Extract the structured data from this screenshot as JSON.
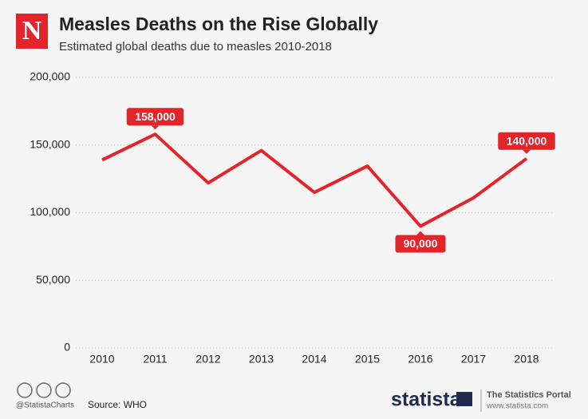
{
  "chart_data": {
    "type": "line",
    "title": "Measles Deaths on the Rise Globally",
    "subtitle": "Estimated global deaths due to measles 2010-2018",
    "logo": "N",
    "categories": [
      "2010",
      "2011",
      "2012",
      "2013",
      "2014",
      "2015",
      "2016",
      "2017",
      "2018"
    ],
    "values": [
      139000,
      158000,
      122000,
      146000,
      115000,
      134500,
      90000,
      111000,
      140000
    ],
    "value_labels": [
      null,
      "158,000",
      null,
      null,
      null,
      null,
      "90,000",
      null,
      "140,000"
    ],
    "color": "#e3242b",
    "ylim": [
      0,
      200000
    ],
    "yticks": [
      {
        "value": 0,
        "label": "0"
      },
      {
        "value": 50000,
        "label": "50,000"
      },
      {
        "value": 100000,
        "label": "100,000"
      },
      {
        "value": 150000,
        "label": "150,000"
      },
      {
        "value": 200000,
        "label": "200,000"
      }
    ],
    "grid": true,
    "credit": "@StatistaCharts",
    "source": "Source: WHO",
    "brand": "statista",
    "portal": "The Statistics Portal",
    "url": "www.statista.com"
  }
}
